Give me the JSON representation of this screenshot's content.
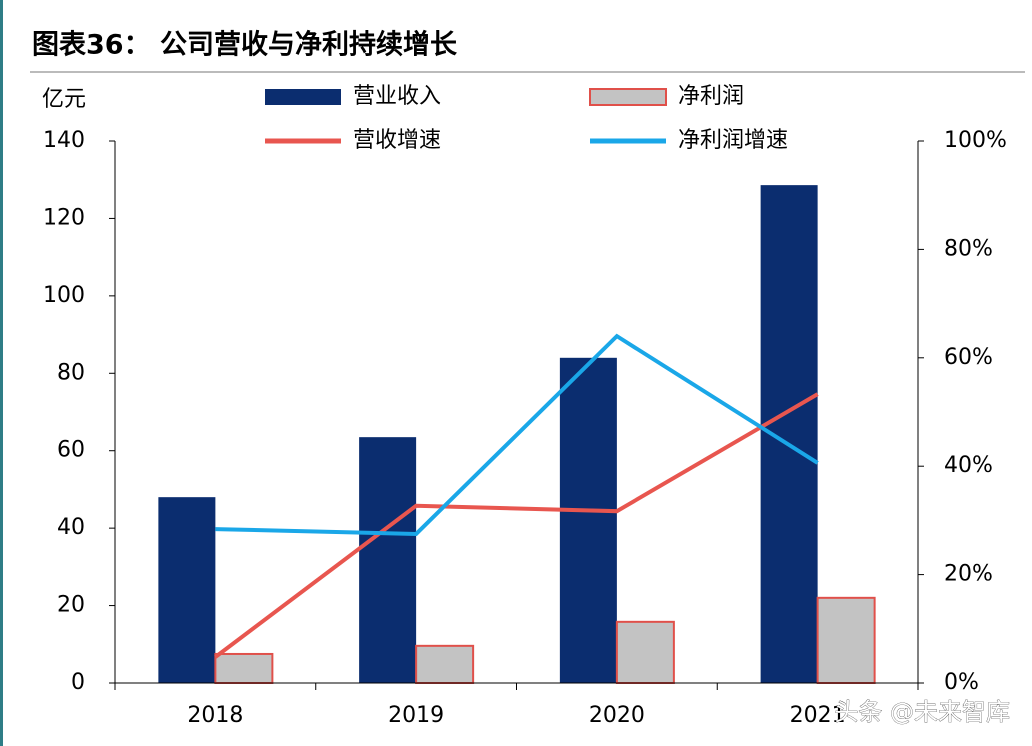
{
  "chart_data": {
    "type": "combo",
    "title": "图表36：  公司营收与净利持续增长",
    "y_label": "亿元",
    "watermark": "头条 @未来智库",
    "categories": [
      "2018",
      "2019",
      "2020",
      "2021"
    ],
    "series": [
      {
        "name": "营业收入",
        "type": "bar",
        "color": "#0b2d6f",
        "values": [
          48.0,
          63.5,
          84.0,
          128.6
        ]
      },
      {
        "name": "净利润",
        "type": "bar",
        "color": "#c3c3c3",
        "edge": "#e0504a",
        "values": [
          7.5,
          9.6,
          15.8,
          22.0
        ]
      },
      {
        "name": "营收增速",
        "type": "line",
        "axis": "y2",
        "color": "#e8564f",
        "values": [
          4.8,
          32.7,
          31.7,
          53.3
        ]
      },
      {
        "name": "净利润增速",
        "type": "line",
        "axis": "y2",
        "color": "#1aa7e8",
        "values": [
          28.4,
          27.5,
          64.0,
          40.6
        ]
      }
    ],
    "ylim": [
      0,
      140
    ],
    "yticks": [
      0,
      20,
      40,
      60,
      80,
      100,
      120,
      140
    ],
    "y2lim": [
      0,
      100
    ],
    "y2ticks": [
      {
        "value": 0,
        "label": "0%"
      },
      {
        "value": 20,
        "label": "20%"
      },
      {
        "value": 40,
        "label": "40%"
      },
      {
        "value": 60,
        "label": "60%"
      },
      {
        "value": 80,
        "label": "80%"
      },
      {
        "value": 100,
        "label": "100%"
      }
    ]
  }
}
